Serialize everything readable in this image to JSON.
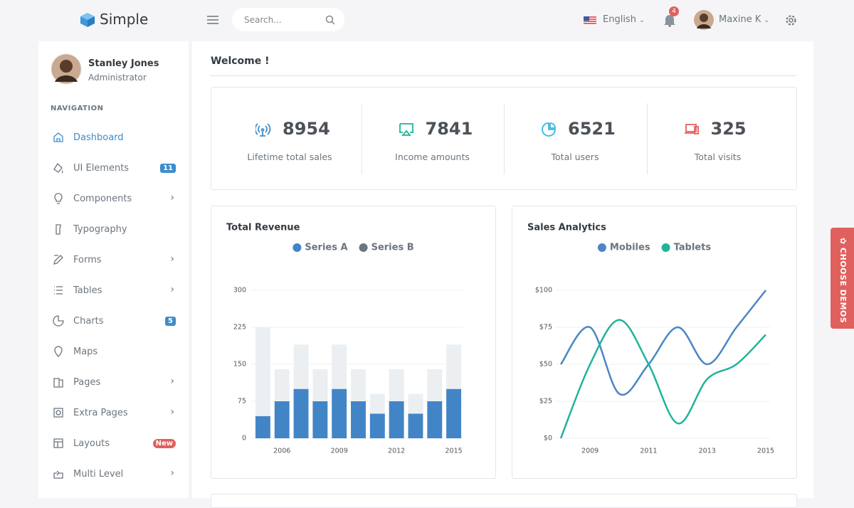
{
  "header": {
    "brand": "Simple",
    "search_placeholder": "Search...",
    "language": "English",
    "notifications": 4,
    "user": "Maxine K"
  },
  "sidebar": {
    "user_name": "Stanley Jones",
    "user_role": "Administrator",
    "section": "NAVIGATION",
    "items": [
      {
        "label": "Dashboard"
      },
      {
        "label": "UI Elements",
        "badge": 11
      },
      {
        "label": "Components",
        "submenu": true
      },
      {
        "label": "Typography"
      },
      {
        "label": "Forms",
        "submenu": true
      },
      {
        "label": "Tables",
        "submenu": true
      },
      {
        "label": "Charts",
        "badge": 5
      },
      {
        "label": "Maps"
      },
      {
        "label": "Pages",
        "submenu": true
      },
      {
        "label": "Extra Pages",
        "submenu": true
      },
      {
        "label": "Layouts",
        "badge": "New"
      },
      {
        "label": "Multi Level",
        "submenu": true
      }
    ]
  },
  "main": {
    "heading": "Welcome !",
    "stats": [
      {
        "value": 8954,
        "label": "Lifetime total sales"
      },
      {
        "value": 7841,
        "label": "Income amounts"
      },
      {
        "value": 6521,
        "label": "Total users"
      },
      {
        "value": 325,
        "label": "Total visits"
      }
    ],
    "side_tab": "CHOOSE DEMOS"
  },
  "chart_data": [
    {
      "type": "bar",
      "stacked": true,
      "title": "Total Revenue",
      "categories": [
        null,
        "2006",
        null,
        null,
        "2009",
        null,
        null,
        "2012",
        null,
        null,
        "2015"
      ],
      "series": [
        {
          "name": "Series A",
          "color": "#4285c7",
          "values": [
            45,
            75,
            100,
            75,
            100,
            75,
            50,
            75,
            50,
            75,
            100
          ]
        },
        {
          "name": "Series B",
          "color": "#ebeff2",
          "values": [
            180,
            65,
            90,
            65,
            90,
            65,
            40,
            65,
            40,
            65,
            90
          ]
        }
      ],
      "legend_color_b": null,
      "ylim": [
        0,
        300
      ],
      "yticks": [
        0,
        75,
        150,
        225,
        300
      ],
      "grid": true
    },
    {
      "type": "line",
      "smooth": true,
      "title": "Sales Analytics",
      "x": [
        2008,
        2009,
        2010,
        2011,
        2012,
        2013,
        2014,
        2015
      ],
      "series": [
        {
          "name": "Mobiles",
          "color": "#4a86c5",
          "values": [
            50,
            75,
            30,
            50,
            75,
            50,
            75,
            100
          ]
        },
        {
          "name": "Tablets",
          "color": "#20b39a",
          "values": [
            0,
            50,
            80,
            50,
            10,
            40,
            50,
            70
          ]
        }
      ],
      "xlim": [
        2008,
        2015
      ],
      "xticks": [
        2009,
        2011,
        2013,
        2015
      ],
      "ylim": [
        0,
        100
      ],
      "yticks": [
        {
          "value": 0,
          "label": "$0"
        },
        {
          "value": 25,
          "label": "$25"
        },
        {
          "value": 50,
          "label": "$50"
        },
        {
          "value": 75,
          "label": "$75"
        },
        {
          "value": 100,
          "label": "$100"
        }
      ],
      "grid": true
    }
  ]
}
